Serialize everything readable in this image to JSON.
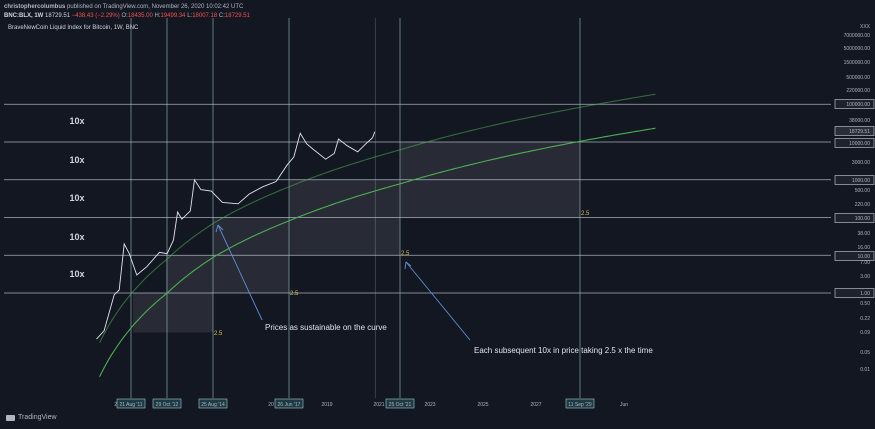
{
  "header": {
    "author": "christophercolumbus",
    "published": "published on TradingView.com, November 26, 2020 10:02:42 UTC",
    "symbol": "BNC:BLX, 1W",
    "price": "18729.51",
    "change": "−438.43 (−2.29%)",
    "o_label": "O:",
    "o_value": "18435.00",
    "h_label": "H:",
    "h_value": "19499.34",
    "l_label": "L:",
    "l_value": "18007.18",
    "c_label": "C:",
    "c_value": "18729.51"
  },
  "index_title": "BraveNewCoin Liquid Index for Bitcoin, 1W, BNC",
  "brand": "TradingView",
  "colors": {
    "background": "#131722",
    "curve": "#4caf50",
    "price": "#e0e3eb",
    "band": "#3a3d46",
    "vline": "#9fc6cf",
    "hline": "#c9d3e2",
    "fib_label": "#d4c24a",
    "arrow": "#5b8fd4",
    "negative": "#ef5350"
  },
  "chart_data": {
    "type": "line",
    "scale": "log",
    "x_axis_labels": [
      "20",
      "21 Aug '11",
      "29 Oct '12",
      "25 Aug '14",
      "20",
      "26 Jun '17",
      "2019",
      "2021",
      "25 Oct '21",
      "2023",
      "2025",
      "2027",
      "11 Sep '29",
      "Jun"
    ],
    "x_axis_boxed": [
      "21 Aug '11",
      "29 Oct '12",
      "25 Aug '14",
      "26 Jun '17",
      "25 Oct '21",
      "11 Sep '29"
    ],
    "y_axis_labels": [
      "XXX",
      "7000000.00",
      "5000000.00",
      "1500000.00",
      "500000.00",
      "220000.00",
      "100000.00",
      "38000.00",
      "18729.51",
      "10000.00",
      "3000.00",
      "1000.00",
      "500.00",
      "220.00",
      "100.00",
      "38.00",
      "16.00",
      "10.00",
      "7.00",
      "3.00",
      "1.00",
      "0.50",
      "0.22",
      "0.09",
      "0.05",
      "0.01"
    ],
    "y_axis_boxed": [
      "100000.00",
      "18729.51",
      "10000.00",
      "1000.00",
      "100.00",
      "10.00",
      "1.00"
    ],
    "current_price": 18729.51,
    "decade_levels": [
      1,
      10,
      100,
      1000,
      10000,
      100000
    ],
    "band_labels": [
      "10x",
      "10x",
      "10x",
      "10x",
      "10x"
    ],
    "fib_labels": [
      "2.5",
      "2.5",
      "2.5",
      "2.5"
    ],
    "btc_weekly_approx": {
      "dates": [
        "2010-07",
        "2010-10",
        "2011-02",
        "2011-04",
        "2011-06",
        "2011-08",
        "2011-11",
        "2012-03",
        "2012-08",
        "2012-11",
        "2013-02",
        "2013-04",
        "2013-06",
        "2013-10",
        "2013-12",
        "2014-03",
        "2014-08",
        "2015-01",
        "2015-08",
        "2016-01",
        "2016-07",
        "2017-01",
        "2017-06",
        "2017-09",
        "2017-12",
        "2018-03",
        "2018-06",
        "2018-12",
        "2019-04",
        "2019-06",
        "2019-10",
        "2020-03",
        "2020-07",
        "2020-10",
        "2020-11"
      ],
      "values": [
        0.06,
        0.1,
        0.9,
        1.2,
        20,
        11,
        3,
        5,
        12,
        11,
        25,
        140,
        90,
        150,
        1000,
        550,
        500,
        250,
        230,
        420,
        650,
        900,
        2500,
        4000,
        17000,
        9000,
        6500,
        3500,
        5000,
        12000,
        8000,
        5500,
        9200,
        13000,
        18729.51
      ]
    },
    "annotations": [
      "Prices as sustainable on the curve",
      "Each subsequent 10x in price taking 2.5 x the time"
    ]
  }
}
